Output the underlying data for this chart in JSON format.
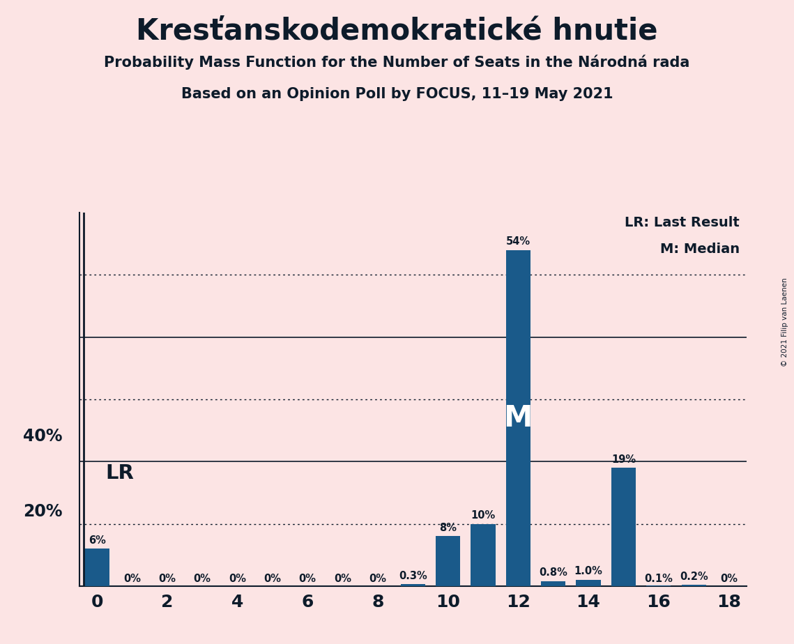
{
  "title": "Kresťanskodemokratické hnutie",
  "subtitle1": "Probability Mass Function for the Number of Seats in the Národná rada",
  "subtitle2": "Based on an Opinion Poll by FOCUS, 11–19 May 2021",
  "copyright": "© 2021 Filip van Laenen",
  "seats": [
    0,
    1,
    2,
    3,
    4,
    5,
    6,
    7,
    8,
    9,
    10,
    11,
    12,
    13,
    14,
    15,
    16,
    17,
    18
  ],
  "probabilities": [
    0.06,
    0.0,
    0.0,
    0.0,
    0.0,
    0.0,
    0.0,
    0.0,
    0.0,
    0.003,
    0.08,
    0.1,
    0.54,
    0.008,
    0.01,
    0.19,
    0.001,
    0.002,
    0.0
  ],
  "labels": [
    "6%",
    "0%",
    "0%",
    "0%",
    "0%",
    "0%",
    "0%",
    "0%",
    "0%",
    "0.3%",
    "8%",
    "10%",
    "54%",
    "0.8%",
    "1.0%",
    "19%",
    "0.1%",
    "0.2%",
    "0%"
  ],
  "bar_color": "#1a5a8a",
  "background_color": "#fce4e4",
  "text_color": "#0d1b2a",
  "lr_seat": 0,
  "median_seat": 12,
  "solid_yticks": [
    0.2,
    0.4
  ],
  "dotted_yticks": [
    0.1,
    0.3,
    0.5
  ],
  "ylim": [
    0,
    0.6
  ],
  "xlim": [
    -0.5,
    18.5
  ],
  "bar_width": 0.7
}
